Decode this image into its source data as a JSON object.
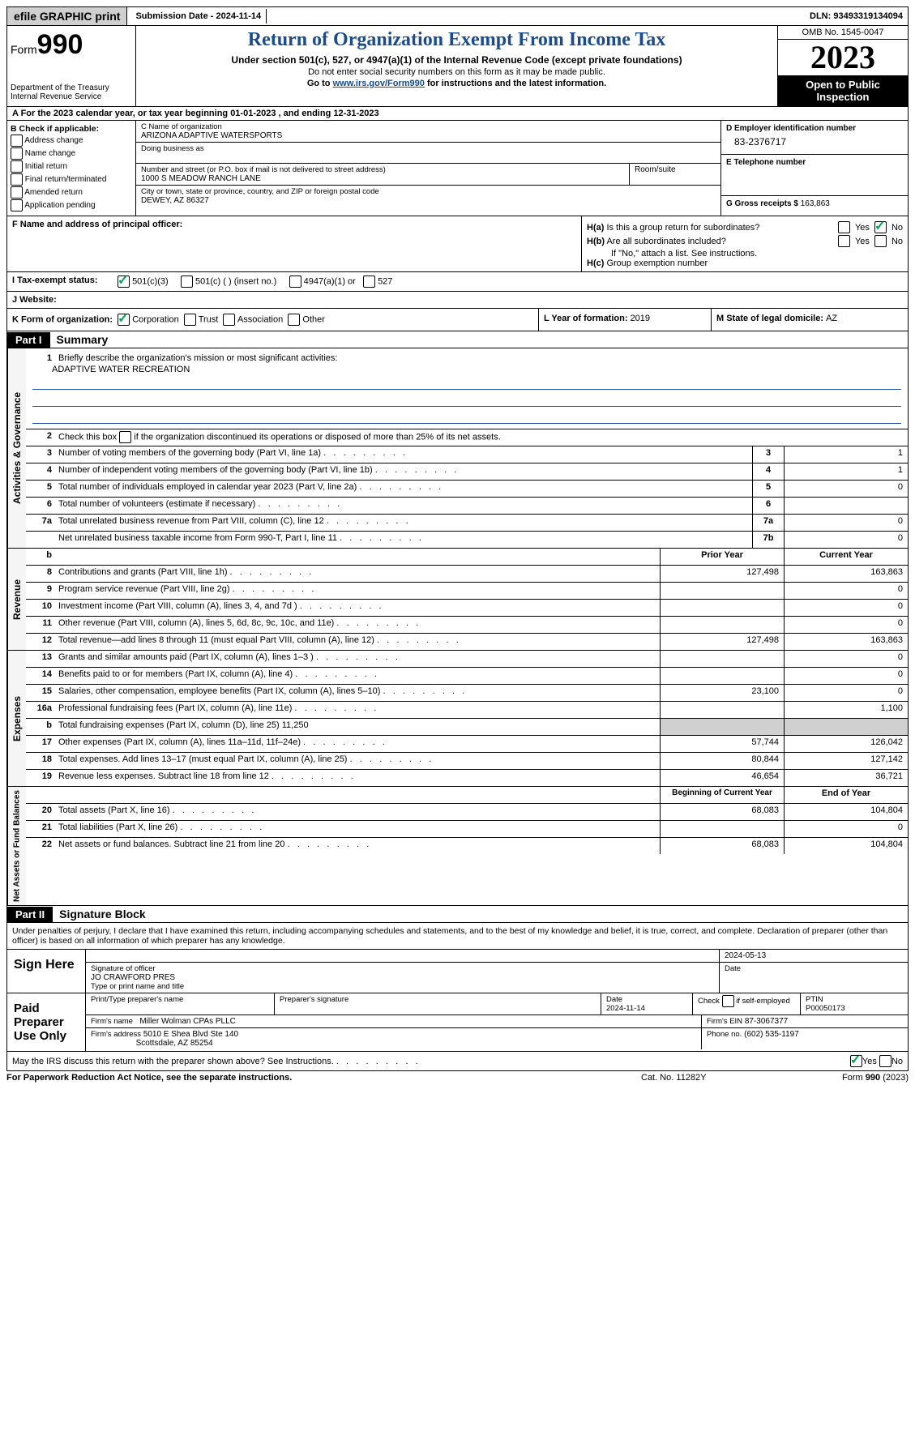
{
  "topbar": {
    "efile": "efile GRAPHIC print",
    "submission_label": "Submission Date - ",
    "submission_date": "2024-11-14",
    "dln_label": "DLN: ",
    "dln": "93493319134094"
  },
  "header": {
    "form_prefix": "Form",
    "form_num": "990",
    "dept": "Department of the Treasury Internal Revenue Service",
    "title": "Return of Organization Exempt From Income Tax",
    "sub1": "Under section 501(c), 527, or 4947(a)(1) of the Internal Revenue Code (except private foundations)",
    "sub2": "Do not enter social security numbers on this form as it may be made public.",
    "sub3_pre": "Go to ",
    "sub3_link": "www.irs.gov/Form990",
    "sub3_post": " for instructions and the latest information.",
    "omb": "OMB No. 1545-0047",
    "year": "2023",
    "openpub": "Open to Public Inspection"
  },
  "lineA": "A For the 2023 calendar year, or tax year beginning 01-01-2023    , and ending 12-31-2023",
  "colB": {
    "hdr": "B Check if applicable:",
    "opts": [
      "Address change",
      "Name change",
      "Initial return",
      "Final return/terminated",
      "Amended return",
      "Application pending"
    ]
  },
  "colC": {
    "name_lbl": "C Name of organization",
    "name": "ARIZONA ADAPTIVE WATERSPORTS",
    "dba_lbl": "Doing business as",
    "street_lbl": "Number and street (or P.O. box if mail is not delivered to street address)",
    "room_lbl": "Room/suite",
    "street": "1000 S MEADOW RANCH LANE",
    "city_lbl": "City or town, state or province, country, and ZIP or foreign postal code",
    "city": "DEWEY, AZ  86327"
  },
  "colD": {
    "d_lbl": "D Employer identification number",
    "d_val": "83-2376717",
    "e_lbl": "E Telephone number",
    "g_lbl": "G Gross receipts $ ",
    "g_val": "163,863"
  },
  "fhi": {
    "f_lbl": "F  Name and address of principal officer:",
    "ha_lbl": "H(a)  Is this a group return for subordinates?",
    "hb_lbl": "H(b)  Are all subordinates included?",
    "hnote": "If \"No,\" attach a list. See instructions.",
    "hc_lbl": "H(c)  Group exemption number",
    "yes": "Yes",
    "no": "No"
  },
  "lineI": {
    "lbl": "I   Tax-exempt status:",
    "opts": [
      "501(c)(3)",
      "501(c) (  ) (insert no.)",
      "4947(a)(1) or",
      "527"
    ],
    "checked": [
      true,
      false,
      false,
      false
    ]
  },
  "lineJ": {
    "lbl": "J   Website:"
  },
  "lineK": {
    "lbl": "K Form of organization:",
    "opts": [
      "Corporation",
      "Trust",
      "Association",
      "Other"
    ],
    "checked": [
      true,
      false,
      false,
      false
    ],
    "l_lbl": "L Year of formation: ",
    "l_val": "2019",
    "m_lbl": "M State of legal domicile: ",
    "m_val": "AZ"
  },
  "part1": {
    "hdr": "Part I",
    "title": "Summary",
    "q1_lbl": "Briefly describe the organization's mission or most significant activities:",
    "q1_val": "ADAPTIVE WATER RECREATION",
    "q2": "Check this box      if the organization discontinued its operations or disposed of more than 25% of its net assets.",
    "side_ag": "Activities & Governance",
    "side_rev": "Revenue",
    "side_exp": "Expenses",
    "side_na": "Net Assets or Fund Balances",
    "gov_rows": [
      {
        "n": "3",
        "t": "Number of voting members of the governing body (Part VI, line 1a)",
        "bn": "3",
        "v": "1"
      },
      {
        "n": "4",
        "t": "Number of independent voting members of the governing body (Part VI, line 1b)",
        "bn": "4",
        "v": "1"
      },
      {
        "n": "5",
        "t": "Total number of individuals employed in calendar year 2023 (Part V, line 2a)",
        "bn": "5",
        "v": "0"
      },
      {
        "n": "6",
        "t": "Total number of volunteers (estimate if necessary)",
        "bn": "6",
        "v": ""
      },
      {
        "n": "7a",
        "t": "Total unrelated business revenue from Part VIII, column (C), line 12",
        "bn": "7a",
        "v": "0"
      },
      {
        "n": "",
        "t": "Net unrelated business taxable income from Form 990-T, Part I, line 11",
        "bn": "7b",
        "v": "0"
      }
    ],
    "prior_hdr": "Prior Year",
    "curr_hdr": "Current Year",
    "rev_rows": [
      {
        "n": "8",
        "t": "Contributions and grants (Part VIII, line 1h)",
        "p": "127,498",
        "c": "163,863"
      },
      {
        "n": "9",
        "t": "Program service revenue (Part VIII, line 2g)",
        "p": "",
        "c": "0"
      },
      {
        "n": "10",
        "t": "Investment income (Part VIII, column (A), lines 3, 4, and 7d )",
        "p": "",
        "c": "0"
      },
      {
        "n": "11",
        "t": "Other revenue (Part VIII, column (A), lines 5, 6d, 8c, 9c, 10c, and 11e)",
        "p": "",
        "c": "0"
      },
      {
        "n": "12",
        "t": "Total revenue—add lines 8 through 11 (must equal Part VIII, column (A), line 12)",
        "p": "127,498",
        "c": "163,863"
      }
    ],
    "exp_rows": [
      {
        "n": "13",
        "t": "Grants and similar amounts paid (Part IX, column (A), lines 1–3 )",
        "p": "",
        "c": "0"
      },
      {
        "n": "14",
        "t": "Benefits paid to or for members (Part IX, column (A), line 4)",
        "p": "",
        "c": "0"
      },
      {
        "n": "15",
        "t": "Salaries, other compensation, employee benefits (Part IX, column (A), lines 5–10)",
        "p": "23,100",
        "c": "0"
      },
      {
        "n": "16a",
        "t": "Professional fundraising fees (Part IX, column (A), line 11e)",
        "p": "",
        "c": "1,100"
      },
      {
        "n": "b",
        "t": "Total fundraising expenses (Part IX, column (D), line 25) 11,250",
        "p": "grey",
        "c": "grey"
      },
      {
        "n": "17",
        "t": "Other expenses (Part IX, column (A), lines 11a–11d, 11f–24e)",
        "p": "57,744",
        "c": "126,042"
      },
      {
        "n": "18",
        "t": "Total expenses. Add lines 13–17 (must equal Part IX, column (A), line 25)",
        "p": "80,844",
        "c": "127,142"
      },
      {
        "n": "19",
        "t": "Revenue less expenses. Subtract line 18 from line 12",
        "p": "46,654",
        "c": "36,721"
      }
    ],
    "na_hdr_p": "Beginning of Current Year",
    "na_hdr_c": "End of Year",
    "na_rows": [
      {
        "n": "20",
        "t": "Total assets (Part X, line 16)",
        "p": "68,083",
        "c": "104,804"
      },
      {
        "n": "21",
        "t": "Total liabilities (Part X, line 26)",
        "p": "",
        "c": "0"
      },
      {
        "n": "22",
        "t": "Net assets or fund balances. Subtract line 21 from line 20",
        "p": "68,083",
        "c": "104,804"
      }
    ]
  },
  "part2": {
    "hdr": "Part II",
    "title": "Signature Block",
    "decl": "Under penalties of perjury, I declare that I have examined this return, including accompanying schedules and statements, and to the best of my knowledge and belief, it is true, correct, and complete. Declaration of preparer (other than officer) is based on all information of which preparer has any knowledge.",
    "sign_here": "Sign Here",
    "sig_officer_lbl": "Signature of officer",
    "officer_name": "JO CRAWFORD PRES",
    "name_title_lbl": "Type or print name and title",
    "date_lbl": "Date",
    "date_val": "2024-05-13",
    "paid": "Paid Preparer Use Only",
    "prep_name_lbl": "Print/Type preparer's name",
    "prep_sig_lbl": "Preparer's signature",
    "prep_date": "2024-11-14",
    "check_self": "Check       if self-employed",
    "ptin_lbl": "PTIN",
    "ptin": "P00050173",
    "firm_name_lbl": "Firm's name",
    "firm_name": "Miller Wolman CPAs PLLC",
    "firm_ein_lbl": "Firm's EIN",
    "firm_ein": "87-3067377",
    "firm_addr_lbl": "Firm's address",
    "firm_addr1": "5010 E Shea Blvd Ste 140",
    "firm_addr2": "Scottsdale, AZ  85254",
    "phone_lbl": "Phone no.",
    "phone": "(602) 535-1197",
    "discuss": "May the IRS discuss this return with the preparer shown above? See Instructions.",
    "yes": "Yes",
    "no": "No"
  },
  "footer": {
    "l": "For Paperwork Reduction Act Notice, see the separate instructions.",
    "m": "Cat. No. 11282Y",
    "r_pre": "Form ",
    "r_num": "990",
    "r_post": " (2023)"
  }
}
